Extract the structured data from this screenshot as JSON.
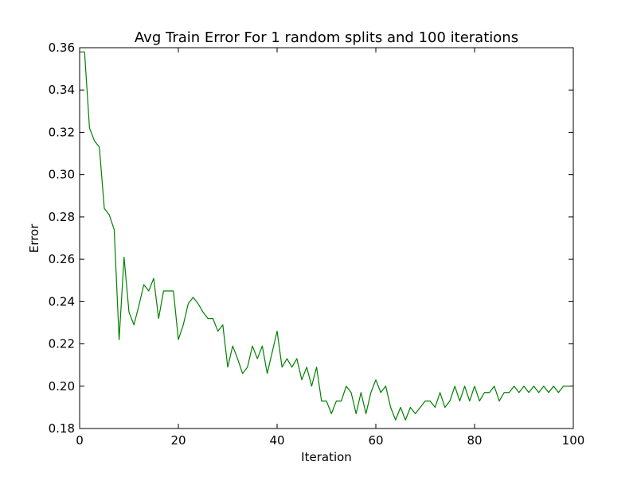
{
  "chart_data": {
    "type": "line",
    "title": "Avg Train Error For 1 random splits and 100 iterations",
    "xlabel": "Iteration",
    "ylabel": "Error",
    "xlim": [
      0,
      100
    ],
    "ylim": [
      0.18,
      0.36
    ],
    "xticks": [
      0,
      20,
      40,
      60,
      80,
      100
    ],
    "xtick_labels": [
      "0",
      "20",
      "40",
      "60",
      "80",
      "100"
    ],
    "yticks": [
      0.18,
      0.2,
      0.22,
      0.24,
      0.26,
      0.28,
      0.3,
      0.32,
      0.34,
      0.36
    ],
    "ytick_labels": [
      "0.18",
      "0.20",
      "0.22",
      "0.24",
      "0.26",
      "0.28",
      "0.30",
      "0.32",
      "0.34",
      "0.36"
    ],
    "grid": false,
    "series": [
      {
        "color": "#008000",
        "x": [
          0,
          1,
          2,
          3,
          4,
          5,
          6,
          7,
          8,
          9,
          10,
          11,
          12,
          13,
          14,
          15,
          16,
          17,
          18,
          19,
          20,
          21,
          22,
          23,
          24,
          25,
          26,
          27,
          28,
          29,
          30,
          31,
          32,
          33,
          34,
          35,
          36,
          37,
          38,
          39,
          40,
          41,
          42,
          43,
          44,
          45,
          46,
          47,
          48,
          49,
          50,
          51,
          52,
          53,
          54,
          55,
          56,
          57,
          58,
          59,
          60,
          61,
          62,
          63,
          64,
          65,
          66,
          67,
          68,
          69,
          70,
          71,
          72,
          73,
          74,
          75,
          76,
          77,
          78,
          79,
          80,
          81,
          82,
          83,
          84,
          85,
          86,
          87,
          88,
          89,
          90,
          91,
          92,
          93,
          94,
          95,
          96,
          97,
          98,
          99
        ],
        "y": [
          0.358,
          0.358,
          0.322,
          0.316,
          0.313,
          0.284,
          0.281,
          0.274,
          0.222,
          0.261,
          0.235,
          0.229,
          0.238,
          0.248,
          0.245,
          0.251,
          0.232,
          0.245,
          0.245,
          0.245,
          0.222,
          0.229,
          0.239,
          0.242,
          0.239,
          0.235,
          0.232,
          0.232,
          0.226,
          0.229,
          0.209,
          0.219,
          0.213,
          0.206,
          0.209,
          0.219,
          0.213,
          0.219,
          0.206,
          0.216,
          0.226,
          0.209,
          0.213,
          0.209,
          0.213,
          0.203,
          0.209,
          0.2,
          0.209,
          0.193,
          0.193,
          0.187,
          0.193,
          0.193,
          0.2,
          0.197,
          0.187,
          0.197,
          0.187,
          0.197,
          0.203,
          0.197,
          0.2,
          0.19,
          0.184,
          0.19,
          0.184,
          0.19,
          0.187,
          0.19,
          0.193,
          0.193,
          0.19,
          0.197,
          0.19,
          0.193,
          0.2,
          0.193,
          0.2,
          0.193,
          0.2,
          0.193,
          0.197,
          0.197,
          0.2,
          0.193,
          0.197,
          0.197,
          0.2,
          0.197,
          0.2,
          0.197,
          0.2,
          0.197,
          0.2,
          0.197,
          0.2,
          0.197,
          0.2,
          0.2
        ]
      }
    ]
  }
}
